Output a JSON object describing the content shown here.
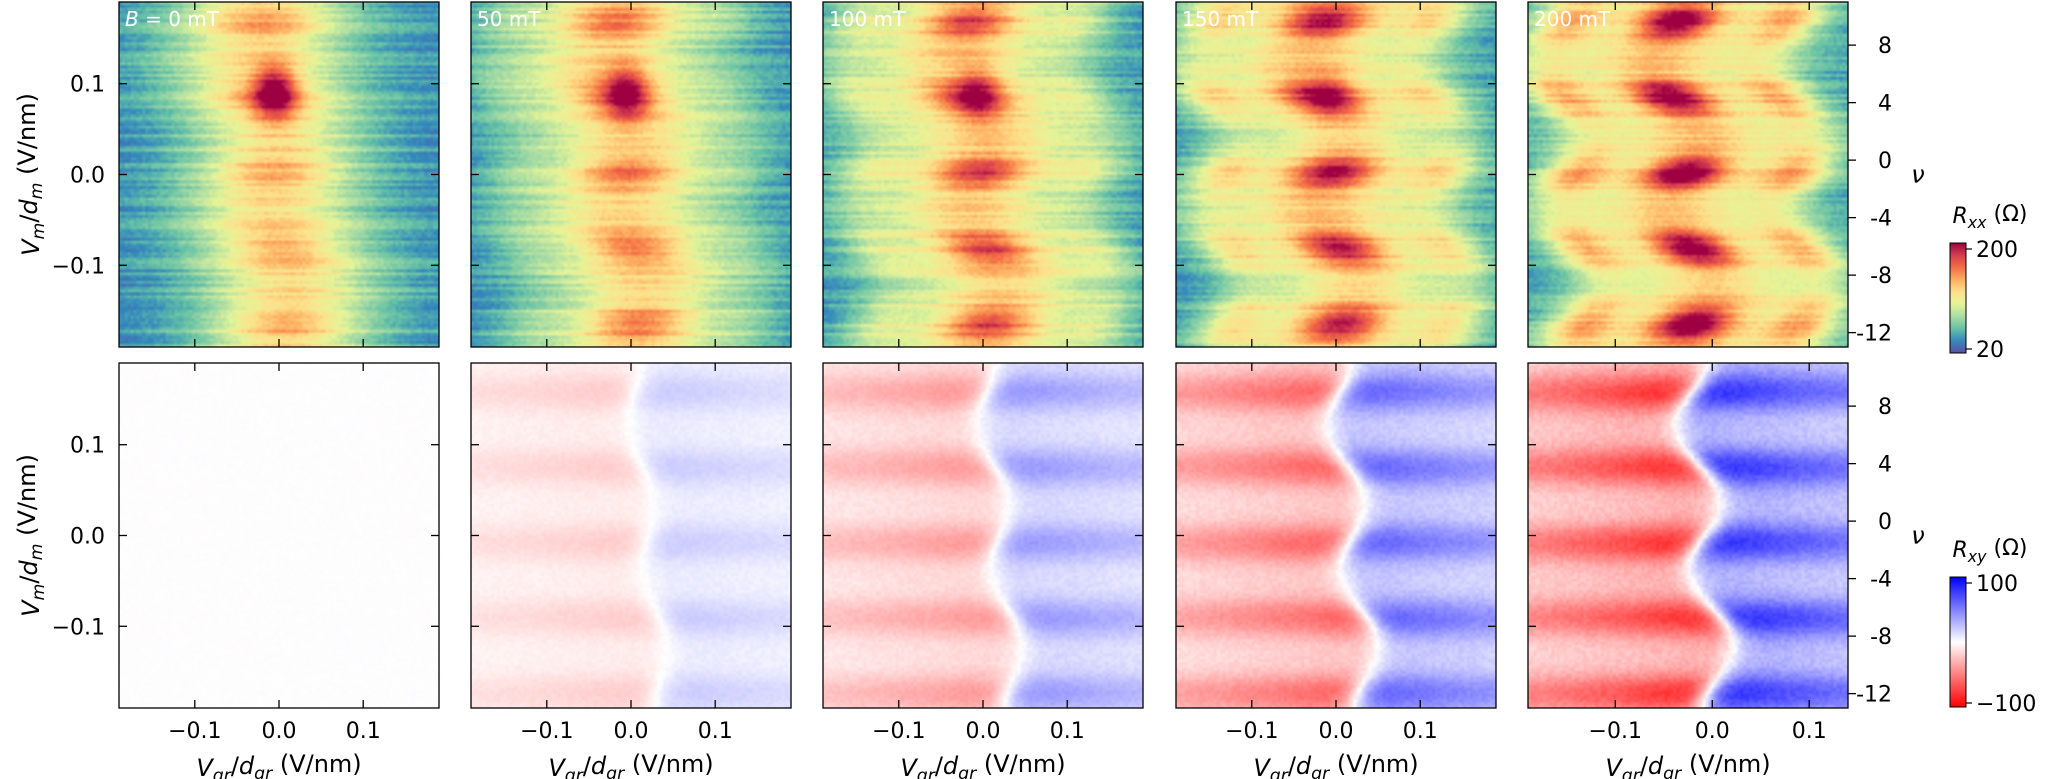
{
  "figure": {
    "rxx_colorbar": {
      "title": "R_xx (Ω)",
      "ticks": [
        20,
        200
      ],
      "scale": "log",
      "colors": [
        "#5e4fa2",
        "#3288bd",
        "#66c2a5",
        "#abdda4",
        "#e6f598",
        "#fee08b",
        "#fdae61",
        "#f46d43",
        "#d53e4f",
        "#9e0142"
      ]
    },
    "rxy_colorbar": {
      "title": "R_xy (Ω)",
      "ticks": [
        100,
        -100
      ],
      "scale": "linear",
      "colors": [
        "#ff0000",
        "#ffffff",
        "#0000ff"
      ]
    }
  },
  "chart_data": [
    {
      "type": "heatmap",
      "row": "Rxx",
      "panel_label": "B = 0 mT",
      "B_mT": 0,
      "xlabel": "",
      "ylabel": "V_m/d_m (V/nm)",
      "right_label": "",
      "xlim": [
        -0.19,
        0.19
      ],
      "ylim": [
        -0.19,
        0.19
      ],
      "x_ticks": [
        -0.1,
        0.0,
        0.1
      ],
      "y_ticks": [
        "0.1",
        "0.0",
        "−0.1"
      ],
      "y_tick_values": [
        0.1,
        0.0,
        -0.1
      ],
      "right_ticks": []
    },
    {
      "type": "heatmap",
      "row": "Rxx",
      "panel_label": "50 mT",
      "B_mT": 50,
      "xlabel": "",
      "ylabel": "",
      "right_label": "",
      "xlim": [
        -0.19,
        0.19
      ],
      "ylim": [
        -0.19,
        0.19
      ],
      "x_ticks": [
        -0.1,
        0.0,
        0.1
      ],
      "y_ticks": [],
      "right_ticks": []
    },
    {
      "type": "heatmap",
      "row": "Rxx",
      "panel_label": "100 mT",
      "B_mT": 100,
      "xlabel": "",
      "ylabel": "",
      "right_label": "",
      "xlim": [
        -0.19,
        0.19
      ],
      "ylim": [
        -0.19,
        0.19
      ],
      "x_ticks": [
        -0.1,
        0.0,
        0.1
      ],
      "y_ticks": [],
      "right_ticks": []
    },
    {
      "type": "heatmap",
      "row": "Rxx",
      "panel_label": "150 mT",
      "B_mT": 150,
      "xlabel": "",
      "ylabel": "",
      "right_label": "",
      "xlim": [
        -0.19,
        0.19
      ],
      "ylim": [
        -0.19,
        0.19
      ],
      "x_ticks": [
        -0.1,
        0.0,
        0.1
      ],
      "y_ticks": [],
      "right_ticks": []
    },
    {
      "type": "heatmap",
      "row": "Rxx",
      "panel_label": "200 mT",
      "B_mT": 200,
      "xlabel": "",
      "ylabel": "",
      "right_label": "ν",
      "xlim": [
        -0.19,
        0.14
      ],
      "ylim": [
        -0.19,
        0.19
      ],
      "nu_lim": [
        -13,
        11
      ],
      "x_ticks": [
        -0.1,
        0.0,
        0.1
      ],
      "y_ticks": [],
      "right_ticks": [
        "8",
        "4",
        "0",
        "-4",
        "-8",
        "-12"
      ],
      "right_tick_values": [
        8,
        4,
        0,
        -4,
        -8,
        -12
      ]
    },
    {
      "type": "heatmap",
      "row": "Rxy",
      "panel_label": "",
      "B_mT": 0,
      "xlabel": "V_gr/d_gr (V/nm)",
      "ylabel": "V_m/d_m (V/nm)",
      "right_label": "",
      "xlim": [
        -0.19,
        0.19
      ],
      "ylim": [
        -0.19,
        0.19
      ],
      "x_ticks": [
        -0.1,
        0.0,
        0.1
      ],
      "x_tick_labels": [
        "−0.1",
        "0.0",
        "0.1"
      ],
      "y_ticks": [
        "0.1",
        "0.0",
        "−0.1"
      ],
      "y_tick_values": [
        0.1,
        0.0,
        -0.1
      ],
      "right_ticks": []
    },
    {
      "type": "heatmap",
      "row": "Rxy",
      "panel_label": "",
      "B_mT": 50,
      "xlabel": "V_gr/d_gr (V/nm)",
      "ylabel": "",
      "right_label": "",
      "xlim": [
        -0.19,
        0.19
      ],
      "ylim": [
        -0.19,
        0.19
      ],
      "x_ticks": [
        -0.1,
        0.0,
        0.1
      ],
      "x_tick_labels": [
        "−0.1",
        "0.0",
        "0.1"
      ],
      "y_ticks": [],
      "right_ticks": []
    },
    {
      "type": "heatmap",
      "row": "Rxy",
      "panel_label": "",
      "B_mT": 100,
      "xlabel": "V_gr/d_gr (V/nm)",
      "ylabel": "",
      "right_label": "",
      "xlim": [
        -0.19,
        0.19
      ],
      "ylim": [
        -0.19,
        0.19
      ],
      "x_ticks": [
        -0.1,
        0.0,
        0.1
      ],
      "x_tick_labels": [
        "−0.1",
        "0.0",
        "0.1"
      ],
      "y_ticks": [],
      "right_ticks": []
    },
    {
      "type": "heatmap",
      "row": "Rxy",
      "panel_label": "",
      "B_mT": 150,
      "xlabel": "V_gr/d_gr (V/nm)",
      "ylabel": "",
      "right_label": "",
      "xlim": [
        -0.19,
        0.19
      ],
      "ylim": [
        -0.19,
        0.19
      ],
      "x_ticks": [
        -0.1,
        0.0,
        0.1
      ],
      "x_tick_labels": [
        "−0.1",
        "0.0",
        "0.1"
      ],
      "y_ticks": [],
      "right_ticks": []
    },
    {
      "type": "heatmap",
      "row": "Rxy",
      "panel_label": "",
      "B_mT": 200,
      "xlabel": "V_gr/d_gr (V/nm)",
      "ylabel": "",
      "right_label": "ν",
      "xlim": [
        -0.19,
        0.14
      ],
      "ylim": [
        -0.19,
        0.19
      ],
      "nu_lim": [
        -13,
        11
      ],
      "x_ticks": [
        -0.1,
        0.0,
        0.1
      ],
      "x_tick_labels": [
        "−0.1",
        "0.0",
        "0.1"
      ],
      "y_ticks": [],
      "right_ticks": [
        "8",
        "4",
        "0",
        "-4",
        "-8",
        "-12"
      ],
      "right_tick_values": [
        8,
        4,
        0,
        -4,
        -8,
        -12
      ]
    }
  ]
}
